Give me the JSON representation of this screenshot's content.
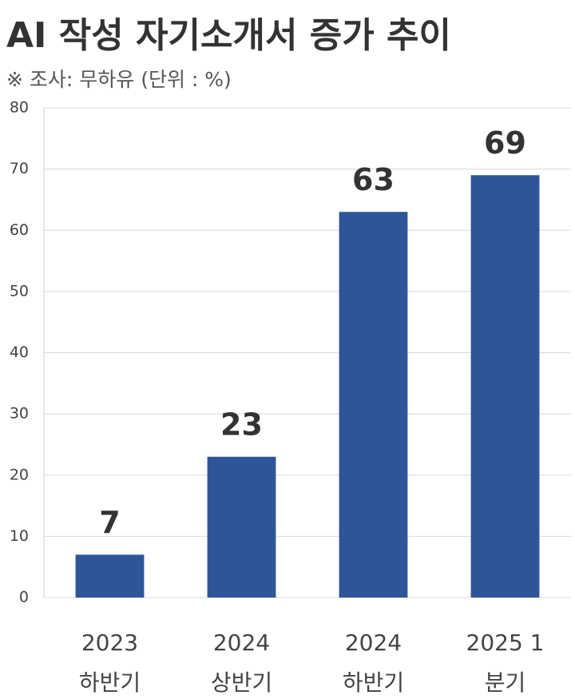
{
  "chart_data": {
    "type": "bar",
    "title": "AI 작성 자기소개서 증가 추이",
    "subtitle": "※ 조사: 무하유 (단위 : %)",
    "categories": [
      "2023 하반기",
      "2024 상반기",
      "2024 하반기",
      "2025 1분기"
    ],
    "values": [
      7,
      23,
      63,
      69
    ],
    "color": "#2e5597",
    "ylim": [
      0,
      80
    ],
    "yticks": [
      0,
      10,
      20,
      30,
      40,
      50,
      60,
      70,
      80
    ],
    "grid": true
  }
}
